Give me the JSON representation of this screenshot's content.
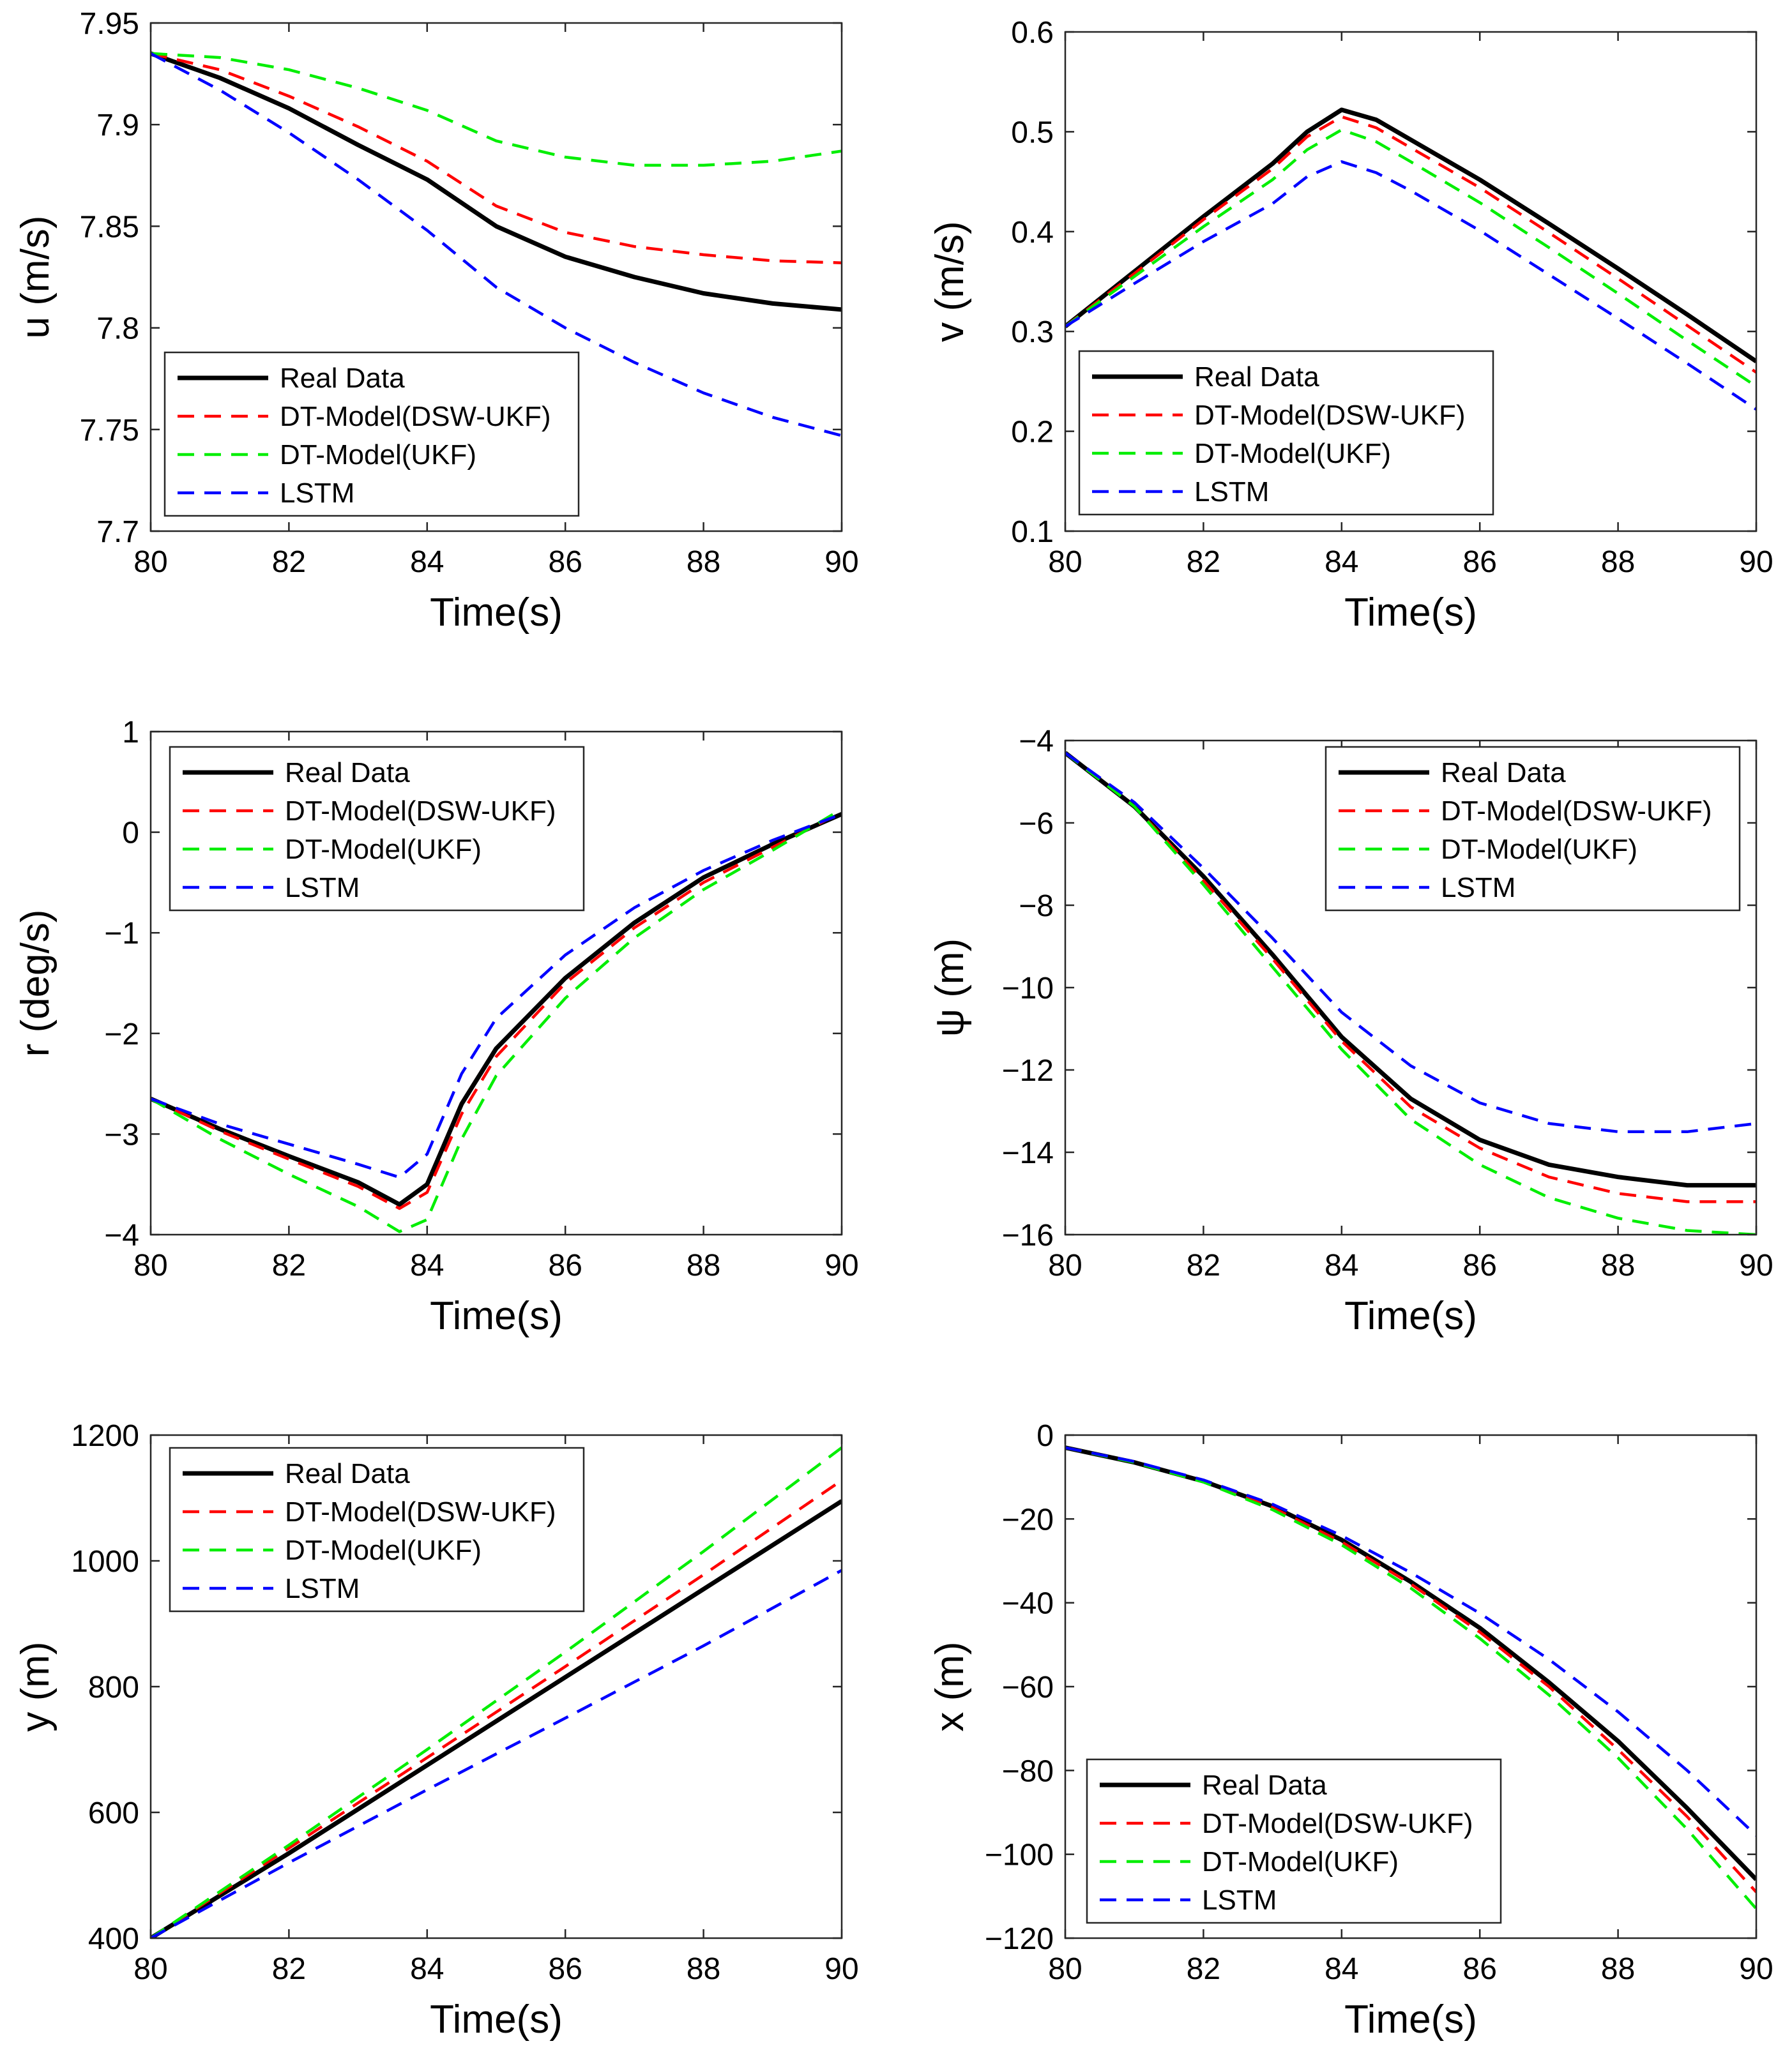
{
  "figure": {
    "panel_count": 6,
    "columns": 2
  },
  "legend_entries": [
    "Real Data",
    "DT-Model(DSW-UKF)",
    "DT-Model(UKF)",
    "LSTM"
  ],
  "colors": {
    "real": "#000000",
    "dsw_ukf": "#ff0000",
    "ukf": "#00ee00",
    "lstm": "#0000ff"
  },
  "chart_data": [
    {
      "type": "line",
      "panel": "u",
      "xlabel": "Time(s)",
      "ylabel": "u (m/s)",
      "xlim": [
        80,
        90
      ],
      "ylim": [
        7.7,
        7.95
      ],
      "xticks": [
        80,
        82,
        84,
        86,
        88,
        90
      ],
      "xtick_labels": [
        "80",
        "82",
        "84",
        "86",
        "88",
        "90"
      ],
      "yticks": [
        7.7,
        7.75,
        7.8,
        7.85,
        7.9,
        7.95
      ],
      "ytick_labels": [
        "7.7",
        "7.75",
        "7.8",
        "7.85",
        "7.9",
        "7.95"
      ],
      "grid": false,
      "legend_position": "bottom-left",
      "x": [
        80,
        81,
        82,
        83,
        84,
        85,
        86,
        87,
        88,
        89,
        90
      ],
      "series": [
        {
          "name": "Real Data",
          "style": "solid",
          "values": [
            7.935,
            7.923,
            7.908,
            7.89,
            7.873,
            7.85,
            7.835,
            7.825,
            7.817,
            7.812,
            7.809
          ]
        },
        {
          "name": "DT-Model(DSW-UKF)",
          "style": "dashed",
          "values": [
            7.935,
            7.927,
            7.914,
            7.899,
            7.882,
            7.86,
            7.847,
            7.84,
            7.836,
            7.833,
            7.832
          ]
        },
        {
          "name": "DT-Model(UKF)",
          "style": "dashed",
          "values": [
            7.935,
            7.933,
            7.927,
            7.918,
            7.907,
            7.892,
            7.884,
            7.88,
            7.88,
            7.882,
            7.887
          ]
        },
        {
          "name": "LSTM",
          "style": "dashed",
          "values": [
            7.935,
            7.917,
            7.896,
            7.873,
            7.848,
            7.82,
            7.8,
            7.783,
            7.768,
            7.756,
            7.747
          ]
        }
      ]
    },
    {
      "type": "line",
      "panel": "v",
      "xlabel": "Time(s)",
      "ylabel": "v (m/s)",
      "xlim": [
        80,
        90
      ],
      "ylim": [
        0.1,
        0.6
      ],
      "xticks": [
        80,
        82,
        84,
        86,
        88,
        90
      ],
      "xtick_labels": [
        "80",
        "82",
        "84",
        "86",
        "88",
        "90"
      ],
      "yticks": [
        0.1,
        0.2,
        0.3,
        0.4,
        0.5,
        0.6
      ],
      "ytick_labels": [
        "0.1",
        "0.2",
        "0.3",
        "0.4",
        "0.5",
        "0.6"
      ],
      "grid": false,
      "legend_position": "bottom-left",
      "x": [
        80,
        81,
        82,
        83,
        83.5,
        84,
        84.5,
        85,
        86,
        87,
        88,
        89,
        90
      ],
      "series": [
        {
          "name": "Real Data",
          "style": "solid",
          "values": [
            0.305,
            0.36,
            0.415,
            0.468,
            0.5,
            0.522,
            0.512,
            0.492,
            0.452,
            0.408,
            0.363,
            0.317,
            0.27
          ]
        },
        {
          "name": "DT-Model(DSW-UKF)",
          "style": "dashed",
          "values": [
            0.305,
            0.358,
            0.412,
            0.463,
            0.495,
            0.515,
            0.504,
            0.484,
            0.444,
            0.399,
            0.353,
            0.306,
            0.259
          ]
        },
        {
          "name": "DT-Model(UKF)",
          "style": "dashed",
          "values": [
            0.305,
            0.355,
            0.405,
            0.452,
            0.482,
            0.502,
            0.49,
            0.47,
            0.429,
            0.384,
            0.338,
            0.291,
            0.245
          ]
        },
        {
          "name": "LSTM",
          "style": "dashed",
          "values": [
            0.305,
            0.348,
            0.39,
            0.428,
            0.455,
            0.47,
            0.459,
            0.441,
            0.401,
            0.357,
            0.313,
            0.268,
            0.222
          ]
        }
      ]
    },
    {
      "type": "line",
      "panel": "r",
      "xlabel": "Time(s)",
      "ylabel": "r (deg/s)",
      "xlim": [
        80,
        90
      ],
      "ylim": [
        -4,
        1
      ],
      "xticks": [
        80,
        82,
        84,
        86,
        88,
        90
      ],
      "xtick_labels": [
        "80",
        "82",
        "84",
        "86",
        "88",
        "90"
      ],
      "yticks": [
        -4,
        -3,
        -2,
        -1,
        0,
        1
      ],
      "ytick_labels": [
        "−4",
        "−3",
        "−2",
        "−1",
        "0",
        "1"
      ],
      "grid": false,
      "legend_position": "top-left",
      "x": [
        80,
        81,
        82,
        83,
        83.6,
        84,
        84.5,
        85,
        86,
        87,
        88,
        89,
        90
      ],
      "series": [
        {
          "name": "Real Data",
          "style": "solid",
          "values": [
            -2.65,
            -2.95,
            -3.22,
            -3.48,
            -3.7,
            -3.5,
            -2.7,
            -2.15,
            -1.45,
            -0.9,
            -0.45,
            -0.12,
            0.18
          ]
        },
        {
          "name": "DT-Model(DSW-UKF)",
          "style": "dashed",
          "values": [
            -2.65,
            -2.97,
            -3.25,
            -3.52,
            -3.74,
            -3.58,
            -2.8,
            -2.23,
            -1.5,
            -0.95,
            -0.5,
            -0.15,
            0.2
          ]
        },
        {
          "name": "DT-Model(UKF)",
          "style": "dashed",
          "values": [
            -2.65,
            -3.05,
            -3.4,
            -3.72,
            -3.97,
            -3.85,
            -3.05,
            -2.42,
            -1.65,
            -1.05,
            -0.57,
            -0.18,
            0.23
          ]
        },
        {
          "name": "LSTM",
          "style": "dashed",
          "values": [
            -2.65,
            -2.9,
            -3.1,
            -3.3,
            -3.43,
            -3.2,
            -2.4,
            -1.85,
            -1.22,
            -0.75,
            -0.38,
            -0.08,
            0.18
          ]
        }
      ]
    },
    {
      "type": "line",
      "panel": "psi",
      "xlabel": "Time(s)",
      "ylabel": "ψ (m)",
      "xlim": [
        80,
        90
      ],
      "ylim": [
        -16,
        -4
      ],
      "xticks": [
        80,
        82,
        84,
        86,
        88,
        90
      ],
      "xtick_labels": [
        "80",
        "82",
        "84",
        "86",
        "88",
        "90"
      ],
      "yticks": [
        -16,
        -14,
        -12,
        -10,
        -8,
        -6,
        -4
      ],
      "ytick_labels": [
        "−16",
        "−14",
        "−12",
        "−10",
        "−8",
        "−6",
        "−4"
      ],
      "grid": false,
      "legend_position": "top-right",
      "x": [
        80,
        81,
        82,
        83,
        84,
        85,
        86,
        87,
        88,
        89,
        90
      ],
      "series": [
        {
          "name": "Real Data",
          "style": "solid",
          "values": [
            -4.3,
            -5.6,
            -7.3,
            -9.2,
            -11.2,
            -12.7,
            -13.7,
            -14.3,
            -14.6,
            -14.8,
            -14.8
          ]
        },
        {
          "name": "DT-Model(DSW-UKF)",
          "style": "dashed",
          "values": [
            -4.3,
            -5.6,
            -7.4,
            -9.3,
            -11.3,
            -12.9,
            -13.9,
            -14.6,
            -15.0,
            -15.2,
            -15.2
          ]
        },
        {
          "name": "DT-Model(UKF)",
          "style": "dashed",
          "values": [
            -4.3,
            -5.6,
            -7.5,
            -9.5,
            -11.5,
            -13.2,
            -14.3,
            -15.1,
            -15.6,
            -15.9,
            -16.0
          ]
        },
        {
          "name": "LSTM",
          "style": "dashed",
          "values": [
            -4.3,
            -5.5,
            -7.1,
            -8.8,
            -10.6,
            -11.9,
            -12.8,
            -13.3,
            -13.5,
            -13.5,
            -13.3
          ]
        }
      ]
    },
    {
      "type": "line",
      "panel": "y",
      "xlabel": "Time(s)",
      "ylabel": "y (m)",
      "xlim": [
        80,
        90
      ],
      "ylim": [
        400,
        1200
      ],
      "xticks": [
        80,
        82,
        84,
        86,
        88,
        90
      ],
      "xtick_labels": [
        "80",
        "82",
        "84",
        "86",
        "88",
        "90"
      ],
      "yticks": [
        400,
        600,
        800,
        1000,
        1200
      ],
      "ytick_labels": [
        "400",
        "600",
        "800",
        "1000",
        "1200"
      ],
      "grid": false,
      "legend_position": "top-left",
      "x": [
        80,
        82,
        84,
        86,
        88,
        90
      ],
      "series": [
        {
          "name": "Real Data",
          "style": "solid",
          "values": [
            400,
            535,
            675,
            815,
            955,
            1095
          ]
        },
        {
          "name": "DT-Model(DSW-UKF)",
          "style": "dashed",
          "values": [
            400,
            543,
            687,
            832,
            978,
            1128
          ]
        },
        {
          "name": "DT-Model(UKF)",
          "style": "dashed",
          "values": [
            400,
            548,
            700,
            855,
            1015,
            1180
          ]
        },
        {
          "name": "LSTM",
          "style": "dashed",
          "values": [
            400,
            520,
            636,
            750,
            865,
            985
          ]
        }
      ]
    },
    {
      "type": "line",
      "panel": "x",
      "xlabel": "Time(s)",
      "ylabel": "x (m)",
      "xlim": [
        80,
        90
      ],
      "ylim": [
        -120,
        0
      ],
      "xticks": [
        80,
        82,
        84,
        86,
        88,
        90
      ],
      "xtick_labels": [
        "80",
        "82",
        "84",
        "86",
        "88",
        "90"
      ],
      "yticks": [
        -120,
        -100,
        -80,
        -60,
        -40,
        -20,
        0
      ],
      "ytick_labels": [
        "−120",
        "−100",
        "−80",
        "−60",
        "−40",
        "−20",
        "0"
      ],
      "grid": false,
      "legend_position": "bottom-left",
      "x": [
        80,
        81,
        82,
        83,
        84,
        85,
        86,
        87,
        88,
        89,
        90
      ],
      "series": [
        {
          "name": "Real Data",
          "style": "solid",
          "values": [
            -3,
            -6.5,
            -11,
            -17,
            -25,
            -35,
            -46,
            -59,
            -73,
            -89,
            -106
          ]
        },
        {
          "name": "DT-Model(DSW-UKF)",
          "style": "dashed",
          "values": [
            -3,
            -6.5,
            -11,
            -17.3,
            -25.5,
            -35.5,
            -47,
            -60,
            -75,
            -91,
            -109
          ]
        },
        {
          "name": "DT-Model(UKF)",
          "style": "dashed",
          "values": [
            -3,
            -6.5,
            -11.2,
            -17.8,
            -26.2,
            -36.5,
            -48.5,
            -62,
            -77,
            -94,
            -113
          ]
        },
        {
          "name": "LSTM",
          "style": "dashed",
          "values": [
            -3,
            -6.3,
            -10.7,
            -16.5,
            -24,
            -32.8,
            -42.5,
            -53.5,
            -66,
            -80,
            -95.5
          ]
        }
      ]
    }
  ]
}
